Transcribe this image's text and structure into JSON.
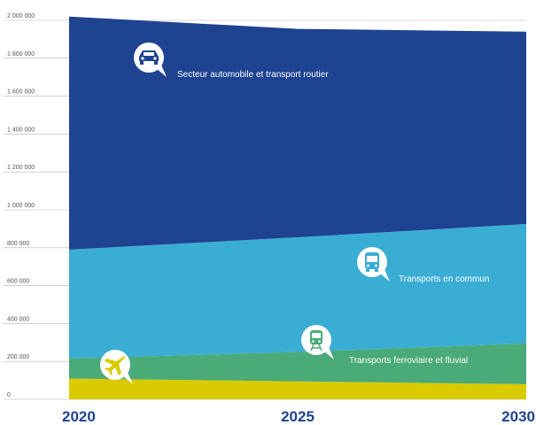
{
  "chart_data": {
    "type": "area",
    "stacked": true,
    "title": "",
    "xlabel": "",
    "ylabel": "",
    "x": [
      "2020",
      "2025",
      "2030"
    ],
    "ylim": [
      0,
      2000000
    ],
    "yticks": [
      0,
      200000,
      400000,
      600000,
      800000,
      1000000,
      1200000,
      1400000,
      1600000,
      1800000,
      2000000
    ],
    "ytick_labels": [
      "0",
      "200 000",
      "400 000",
      "600 000",
      "800 000",
      "1 000 000",
      "1 200 000",
      "1 400 000",
      "1 600 000",
      "1 800 000",
      "2 000 000"
    ],
    "grid": true,
    "legend": "inline",
    "series": [
      {
        "name": "Secteur aérien",
        "values": [
          110000,
          95000,
          80000
        ],
        "color": "#d9cb00",
        "label_color": "#d9cb00",
        "icon": "airplane-icon"
      },
      {
        "name": "Transports ferroviaire et fluvial",
        "values": [
          105000,
          155000,
          215000
        ],
        "color": "#4aaa78",
        "label_color": "#ffffff",
        "icon": "train-icon"
      },
      {
        "name": "Transports en commun",
        "values": [
          575000,
          605000,
          630000
        ],
        "color": "#3aadd4",
        "label_color": "#ffffff",
        "icon": "bus-icon"
      },
      {
        "name": "Secteur automobile et transport routier",
        "values": [
          1230000,
          1100000,
          1015000
        ],
        "color": "#1e4391",
        "label_color": "#ffffff",
        "icon": "car-icon"
      }
    ]
  }
}
